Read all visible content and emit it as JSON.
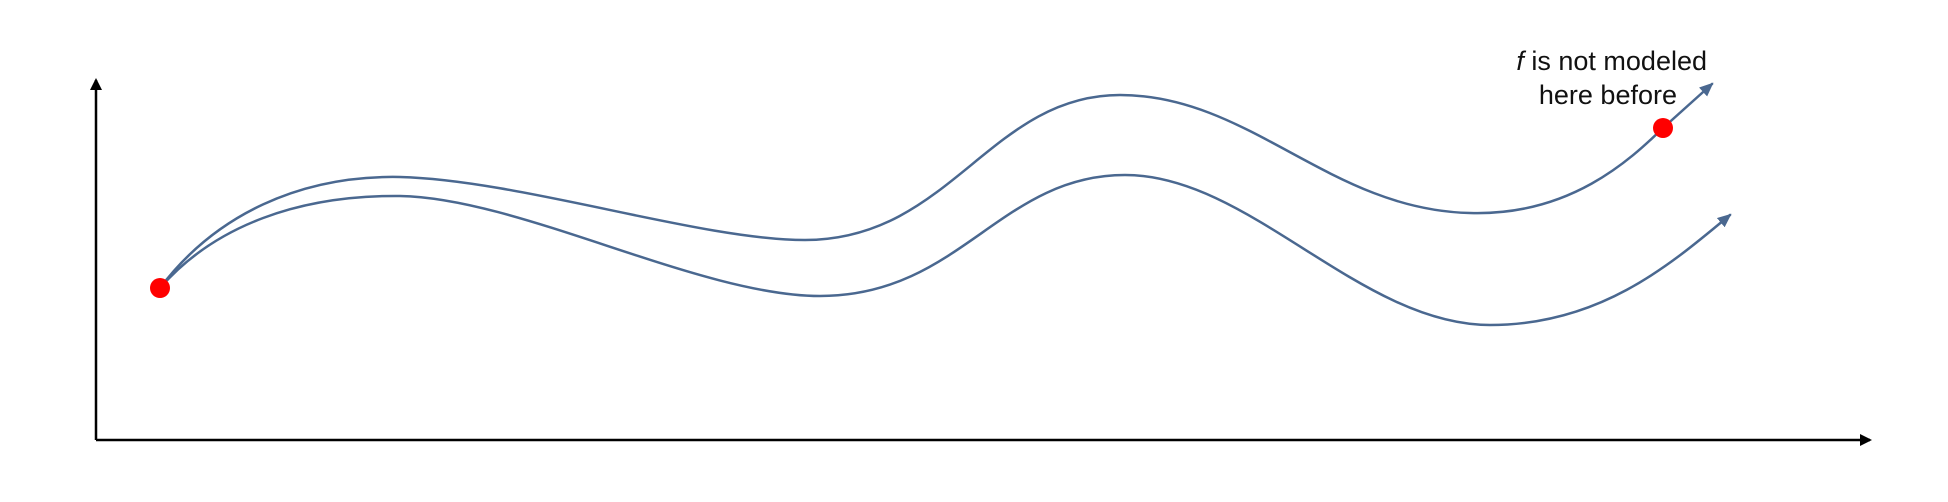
{
  "diagram": {
    "annotation": {
      "symbol": "f",
      "line1_rest": " is not modeled",
      "line2": "here before"
    },
    "colors": {
      "curve": "#4a6890",
      "point": "#ff0000",
      "axis": "#000000",
      "text": "#111111"
    },
    "axes": {
      "x_arrow": true,
      "y_arrow": true
    },
    "curves": [
      {
        "name": "upper-trajectory"
      },
      {
        "name": "lower-trajectory"
      }
    ],
    "points": [
      {
        "name": "start-point"
      },
      {
        "name": "end-point"
      }
    ]
  }
}
